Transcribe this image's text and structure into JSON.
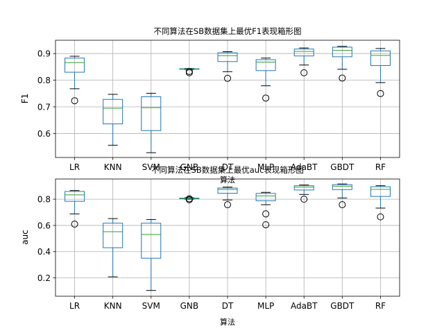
{
  "chart_data": [
    {
      "type": "box",
      "title": "不同算法在SB数据集上最优F1表现箱形图",
      "xlabel": "算法",
      "ylabel": "F1",
      "ylim": [
        0.51,
        0.95
      ],
      "yticks": [
        0.6,
        0.7,
        0.8,
        0.9
      ],
      "grid": true,
      "colors": {
        "box": "#1f77b4",
        "median": "#2ca02c",
        "whisker": "#000000",
        "flier": "#000000"
      },
      "categories": [
        "LR",
        "KNN",
        "SVM",
        "GNB",
        "DT",
        "MLP",
        "AdaBT",
        "GBDT",
        "RF"
      ],
      "boxes": [
        {
          "whislo": 0.768,
          "q1": 0.83,
          "med": 0.866,
          "q3": 0.883,
          "whishi": 0.89,
          "fliers": [
            0.723
          ]
        },
        {
          "whislo": 0.556,
          "q1": 0.636,
          "med": 0.695,
          "q3": 0.728,
          "whishi": 0.747,
          "fliers": []
        },
        {
          "whislo": 0.528,
          "q1": 0.611,
          "med": 0.697,
          "q3": 0.738,
          "whishi": 0.751,
          "fliers": []
        },
        {
          "whislo": 0.84,
          "q1": 0.841,
          "med": 0.842,
          "q3": 0.843,
          "whishi": 0.844,
          "fliers": [
            0.833,
            0.828
          ]
        },
        {
          "whislo": 0.832,
          "q1": 0.87,
          "med": 0.892,
          "q3": 0.903,
          "whishi": 0.907,
          "fliers": [
            0.807
          ]
        },
        {
          "whislo": 0.779,
          "q1": 0.836,
          "med": 0.868,
          "q3": 0.877,
          "whishi": 0.883,
          "fliers": [
            0.733
          ]
        },
        {
          "whislo": 0.857,
          "q1": 0.891,
          "med": 0.908,
          "q3": 0.917,
          "whishi": 0.921,
          "fliers": [
            0.828
          ]
        },
        {
          "whislo": 0.841,
          "q1": 0.888,
          "med": 0.912,
          "q3": 0.924,
          "whishi": 0.927,
          "fliers": [
            0.808
          ]
        },
        {
          "whislo": 0.791,
          "q1": 0.855,
          "med": 0.893,
          "q3": 0.91,
          "whishi": 0.919,
          "fliers": [
            0.75
          ]
        }
      ]
    },
    {
      "type": "box",
      "title": "不同算法在SB数据集上最优auc表现箱形图",
      "xlabel": "算法",
      "ylabel": "auc",
      "ylim": [
        0.06,
        0.954
      ],
      "yticks": [
        0.2,
        0.4,
        0.6,
        0.8
      ],
      "grid": true,
      "colors": {
        "box": "#1f77b4",
        "median": "#2ca02c",
        "whisker": "#000000",
        "flier": "#000000"
      },
      "categories": [
        "LR",
        "KNN",
        "SVM",
        "GNB",
        "DT",
        "MLP",
        "AdaBT",
        "GBDT",
        "RF"
      ],
      "boxes": [
        {
          "whislo": 0.688,
          "q1": 0.784,
          "med": 0.833,
          "q3": 0.859,
          "whishi": 0.866,
          "fliers": [
            0.61
          ]
        },
        {
          "whislo": 0.208,
          "q1": 0.43,
          "med": 0.552,
          "q3": 0.617,
          "whishi": 0.652,
          "fliers": []
        },
        {
          "whislo": 0.104,
          "q1": 0.35,
          "med": 0.531,
          "q3": 0.617,
          "whishi": 0.645,
          "fliers": []
        },
        {
          "whislo": 0.8,
          "q1": 0.803,
          "med": 0.806,
          "q3": 0.808,
          "whishi": 0.811,
          "fliers": [
            0.803,
            0.796
          ]
        },
        {
          "whislo": 0.794,
          "q1": 0.845,
          "med": 0.874,
          "q3": 0.885,
          "whishi": 0.892,
          "fliers": [
            0.758
          ]
        },
        {
          "whislo": 0.758,
          "q1": 0.788,
          "med": 0.825,
          "q3": 0.844,
          "whishi": 0.852,
          "fliers": [
            0.688,
            0.605
          ]
        },
        {
          "whislo": 0.836,
          "q1": 0.87,
          "med": 0.892,
          "q3": 0.903,
          "whishi": 0.908,
          "fliers": [
            0.8
          ]
        },
        {
          "whislo": 0.809,
          "q1": 0.873,
          "med": 0.899,
          "q3": 0.911,
          "whishi": 0.916,
          "fliers": [
            0.758
          ]
        },
        {
          "whislo": 0.732,
          "q1": 0.821,
          "med": 0.875,
          "q3": 0.895,
          "whishi": 0.903,
          "fliers": [
            0.665
          ]
        }
      ]
    }
  ]
}
